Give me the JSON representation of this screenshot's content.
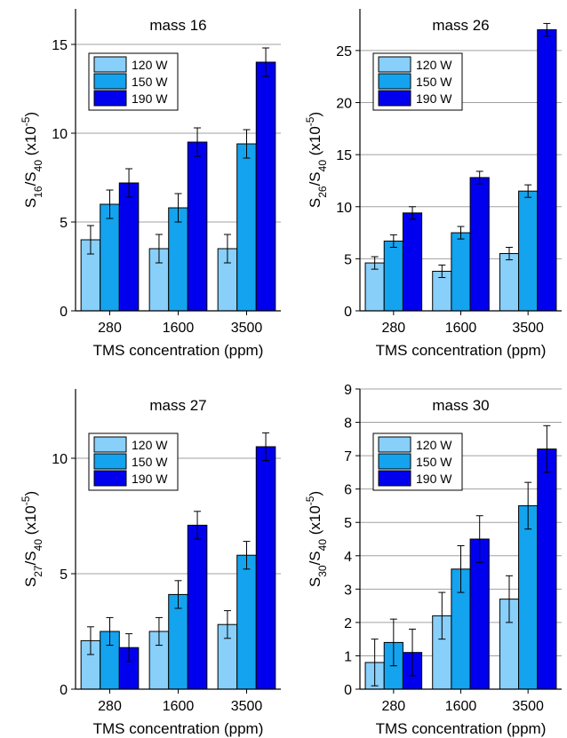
{
  "chart_data": [
    {
      "type": "bar",
      "title": "mass 16",
      "categories": [
        "280",
        "1600",
        "3500"
      ],
      "xlabel": "TMS concentration (ppm)",
      "ylabel_parts": [
        {
          "text": "S"
        },
        {
          "sub": "16"
        },
        {
          "text": "/S"
        },
        {
          "sub": "40"
        },
        {
          "text": " (x10"
        },
        {
          "sup": "-5"
        },
        {
          "text": ")"
        }
      ],
      "ylim": [
        0,
        17
      ],
      "yticks": [
        0,
        5,
        10,
        15
      ],
      "grid": true,
      "legend": "upper-left",
      "series": [
        {
          "name": "120 W",
          "color": "#88cffa",
          "values": [
            4,
            3.5,
            3.5
          ],
          "errors": [
            0.8,
            0.8,
            0.8
          ]
        },
        {
          "name": "150 W",
          "color": "#14a3ee",
          "values": [
            6,
            5.8,
            9.4
          ],
          "errors": [
            0.8,
            0.8,
            0.8
          ]
        },
        {
          "name": "190 W",
          "color": "#0000ee",
          "values": [
            7.2,
            9.5,
            14
          ],
          "errors": [
            0.8,
            0.8,
            0.8
          ]
        }
      ]
    },
    {
      "type": "bar",
      "title": "mass 26",
      "categories": [
        "280",
        "1600",
        "3500"
      ],
      "xlabel": "TMS concentration (ppm)",
      "ylabel_parts": [
        {
          "text": "S"
        },
        {
          "sub": "26"
        },
        {
          "text": "/S"
        },
        {
          "sub": "40"
        },
        {
          "text": " (x10"
        },
        {
          "sup": "-5"
        },
        {
          "text": ")"
        }
      ],
      "ylim": [
        0,
        29
      ],
      "yticks": [
        0,
        5,
        10,
        15,
        20,
        25
      ],
      "grid": true,
      "legend": "upper-left",
      "series": [
        {
          "name": "120 W",
          "color": "#88cffa",
          "values": [
            4.6,
            3.8,
            5.5
          ],
          "errors": [
            0.6,
            0.6,
            0.6
          ]
        },
        {
          "name": "150 W",
          "color": "#14a3ee",
          "values": [
            6.7,
            7.5,
            11.5
          ],
          "errors": [
            0.6,
            0.6,
            0.6
          ]
        },
        {
          "name": "190 W",
          "color": "#0000ee",
          "values": [
            9.4,
            12.8,
            27
          ],
          "errors": [
            0.6,
            0.6,
            0.6
          ]
        }
      ]
    },
    {
      "type": "bar",
      "title": "mass 27",
      "categories": [
        "280",
        "1600",
        "3500"
      ],
      "xlabel": "TMS concentration (ppm)",
      "ylabel_parts": [
        {
          "text": "S"
        },
        {
          "sub": "27"
        },
        {
          "text": "/S"
        },
        {
          "sub": "40"
        },
        {
          "text": " (x10"
        },
        {
          "sup": "-5"
        },
        {
          "text": ")"
        }
      ],
      "ylim": [
        0,
        13
      ],
      "yticks": [
        0,
        5,
        10
      ],
      "grid": true,
      "legend": "upper-left",
      "series": [
        {
          "name": "120 W",
          "color": "#88cffa",
          "values": [
            2.1,
            2.5,
            2.8
          ],
          "errors": [
            0.6,
            0.6,
            0.6
          ]
        },
        {
          "name": "150 W",
          "color": "#14a3ee",
          "values": [
            2.5,
            4.1,
            5.8
          ],
          "errors": [
            0.6,
            0.6,
            0.6
          ]
        },
        {
          "name": "190 W",
          "color": "#0000ee",
          "values": [
            1.8,
            7.1,
            10.5
          ],
          "errors": [
            0.6,
            0.6,
            0.6
          ]
        }
      ]
    },
    {
      "type": "bar",
      "title": "mass 30",
      "categories": [
        "280",
        "1600",
        "3500"
      ],
      "xlabel": "TMS concentration (ppm)",
      "ylabel_parts": [
        {
          "text": "S"
        },
        {
          "sub": "30"
        },
        {
          "text": "/S"
        },
        {
          "sub": "40"
        },
        {
          "text": " (x10"
        },
        {
          "sup": "-5"
        },
        {
          "text": ")"
        }
      ],
      "ylim": [
        0,
        9
      ],
      "yticks": [
        0,
        1,
        2,
        3,
        4,
        5,
        6,
        7,
        8,
        9
      ],
      "grid": true,
      "legend": "upper-left",
      "series": [
        {
          "name": "120 W",
          "color": "#88cffa",
          "values": [
            0.8,
            2.2,
            2.7
          ],
          "errors": [
            0.7,
            0.7,
            0.7
          ]
        },
        {
          "name": "150 W",
          "color": "#14a3ee",
          "values": [
            1.4,
            3.6,
            5.5
          ],
          "errors": [
            0.7,
            0.7,
            0.7
          ]
        },
        {
          "name": "190 W",
          "color": "#0000ee",
          "values": [
            1.1,
            4.5,
            7.2
          ],
          "errors": [
            0.7,
            0.7,
            0.7
          ]
        }
      ]
    }
  ]
}
